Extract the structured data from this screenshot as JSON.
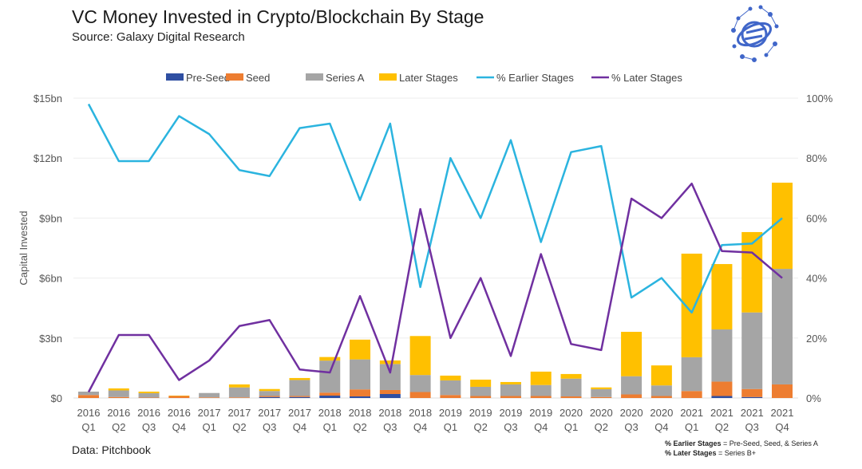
{
  "header": {
    "title": "VC Money Invested in Crypto/Blockchain By Stage",
    "subtitle": "Source: Galaxy Digital Research",
    "logo_icon": "galaxy-network-logo-icon"
  },
  "footer": {
    "data_source": "Data: Pitchbook",
    "note_earlier_term": "% Earlier Stages",
    "note_earlier_def": " = Pre-Seed, Seed, & Series A",
    "note_later_term": "% Later Stages",
    "note_later_def": " = Series B+"
  },
  "chart_data": {
    "type": "bar",
    "stacked": true,
    "title": "VC Money Invested in Crypto/Blockchain By Stage",
    "ylabel": "Capital Invested",
    "ylim": [
      0,
      15
    ],
    "y2lim": [
      0,
      100
    ],
    "y_ticks": [
      "$0",
      "$3bn",
      "$6bn",
      "$9bn",
      "$12bn",
      "$15bn"
    ],
    "y2_ticks": [
      "0%",
      "20%",
      "40%",
      "60%",
      "80%",
      "100%"
    ],
    "legend_position": "top",
    "grid": true,
    "categories": [
      [
        "2016",
        "Q1"
      ],
      [
        "2016",
        "Q2"
      ],
      [
        "2016",
        "Q3"
      ],
      [
        "2016",
        "Q4"
      ],
      [
        "2017",
        "Q1"
      ],
      [
        "2017",
        "Q2"
      ],
      [
        "2017",
        "Q3"
      ],
      [
        "2017",
        "Q4"
      ],
      [
        "2018",
        "Q1"
      ],
      [
        "2018",
        "Q2"
      ],
      [
        "2018",
        "Q3"
      ],
      [
        "2018",
        "Q4"
      ],
      [
        "2019",
        "Q1"
      ],
      [
        "2019",
        "Q2"
      ],
      [
        "2019",
        "Q3"
      ],
      [
        "2019",
        "Q4"
      ],
      [
        "2020",
        "Q1"
      ],
      [
        "2020",
        "Q2"
      ],
      [
        "2020",
        "Q3"
      ],
      [
        "2020",
        "Q4"
      ],
      [
        "2021",
        "Q1"
      ],
      [
        "2021",
        "Q2"
      ],
      [
        "2021",
        "Q3"
      ],
      [
        "2021",
        "Q4"
      ]
    ],
    "series": [
      {
        "name": "Pre-Seed",
        "kind": "bar",
        "color": "#2f4fa2",
        "values": [
          0,
          0,
          0,
          0,
          0,
          0,
          0.05,
          0.05,
          0.12,
          0.08,
          0.2,
          0,
          0,
          0,
          0,
          0,
          0,
          0,
          0,
          0,
          0,
          0.1,
          0.05,
          0
        ]
      },
      {
        "name": "Seed",
        "kind": "bar",
        "color": "#ed7d31",
        "values": [
          0.15,
          0.05,
          0.02,
          0.1,
          0.03,
          0.03,
          0.05,
          0.05,
          0.15,
          0.35,
          0.2,
          0.3,
          0.15,
          0.1,
          0.1,
          0.1,
          0.08,
          0.05,
          0.18,
          0.1,
          0.35,
          0.72,
          0.4,
          0.68
        ]
      },
      {
        "name": "Series A",
        "kind": "bar",
        "color": "#a5a5a5",
        "values": [
          0.17,
          0.33,
          0.22,
          0,
          0.22,
          0.5,
          0.25,
          0.8,
          1.6,
          1.5,
          1.3,
          0.85,
          0.73,
          0.46,
          0.58,
          0.55,
          0.89,
          0.39,
          0.91,
          0.53,
          1.69,
          2.61,
          3.83,
          5.78
        ]
      },
      {
        "name": "Later Stages",
        "kind": "bar",
        "color": "#ffc000",
        "values": [
          0,
          0.1,
          0.08,
          0.02,
          0,
          0.15,
          0.1,
          0.1,
          0.18,
          0.99,
          0.18,
          1.95,
          0.24,
          0.36,
          0.12,
          0.67,
          0.23,
          0.09,
          2.22,
          1.0,
          5.18,
          3.27,
          4.02,
          4.31
        ]
      },
      {
        "name": "% Earlier Stages",
        "kind": "line",
        "axis": "right",
        "color": "#2bb4df",
        "values": [
          98,
          79,
          79,
          94,
          88,
          76,
          74,
          90,
          91.5,
          66,
          91.5,
          37,
          80,
          60,
          86,
          52,
          82,
          84,
          33.5,
          40,
          28.5,
          51,
          51.5,
          60
        ]
      },
      {
        "name": "% Later Stages",
        "kind": "line",
        "axis": "right",
        "color": "#7030a0",
        "values": [
          2,
          21,
          21,
          6,
          12.5,
          24,
          26,
          9.5,
          8.5,
          34,
          8.5,
          63,
          20,
          40,
          14,
          48,
          18,
          16,
          66.5,
          60,
          71.5,
          49,
          48.5,
          40
        ]
      }
    ]
  }
}
